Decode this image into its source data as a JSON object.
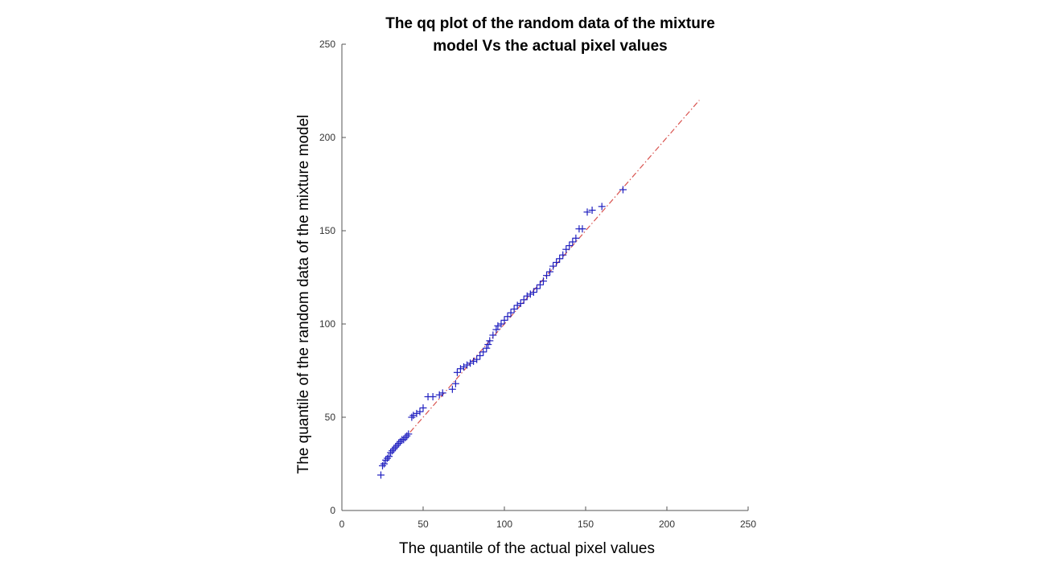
{
  "chart_data": {
    "type": "scatter",
    "title_line1": "The qq plot of the random data of the mixture",
    "title_line2": "model Vs the actual pixel values",
    "xlabel": "The quantile of the actual pixel values",
    "ylabel": "The quantile of the random data of the mixture model",
    "xlim": [
      0,
      250
    ],
    "ylim": [
      0,
      250
    ],
    "xticks": [
      0,
      50,
      100,
      150,
      200,
      250
    ],
    "yticks": [
      0,
      50,
      100,
      150,
      200,
      250
    ],
    "grid": false,
    "marker": "+",
    "marker_color": "#1f1fbf",
    "reference_line": {
      "style": "dash-dot",
      "color": "#d9534f",
      "x": [
        42,
        220
      ],
      "y": [
        42,
        220
      ]
    },
    "points": {
      "x": [
        24,
        25,
        26,
        27,
        28,
        29,
        30,
        31,
        32,
        33,
        34,
        35,
        36,
        37,
        38,
        39,
        40,
        41,
        43,
        44,
        46,
        48,
        50,
        53,
        56,
        60,
        62,
        68,
        70,
        71,
        73,
        75,
        77,
        79,
        81,
        83,
        85,
        87,
        89,
        90,
        91,
        93,
        95,
        96,
        98,
        100,
        102,
        104,
        106,
        108,
        110,
        112,
        114,
        116,
        118,
        120,
        122,
        124,
        126,
        128,
        130,
        132,
        134,
        136,
        138,
        140,
        142,
        144,
        146,
        148,
        151,
        154,
        160,
        173
      ],
      "y": [
        19,
        24,
        25,
        27,
        28,
        29,
        31,
        32,
        33,
        34,
        35,
        36,
        37,
        38,
        38,
        39,
        40,
        41,
        50,
        51,
        52,
        53,
        55,
        61,
        61,
        62,
        63,
        65,
        68,
        74,
        76,
        77,
        78,
        79,
        80,
        81,
        83,
        85,
        87,
        89,
        91,
        94,
        97,
        99,
        100,
        102,
        104,
        106,
        108,
        110,
        111,
        113,
        115,
        116,
        117,
        119,
        121,
        123,
        126,
        128,
        131,
        133,
        135,
        137,
        140,
        142,
        144,
        146,
        151,
        151,
        160,
        161,
        163,
        172
      ]
    }
  }
}
